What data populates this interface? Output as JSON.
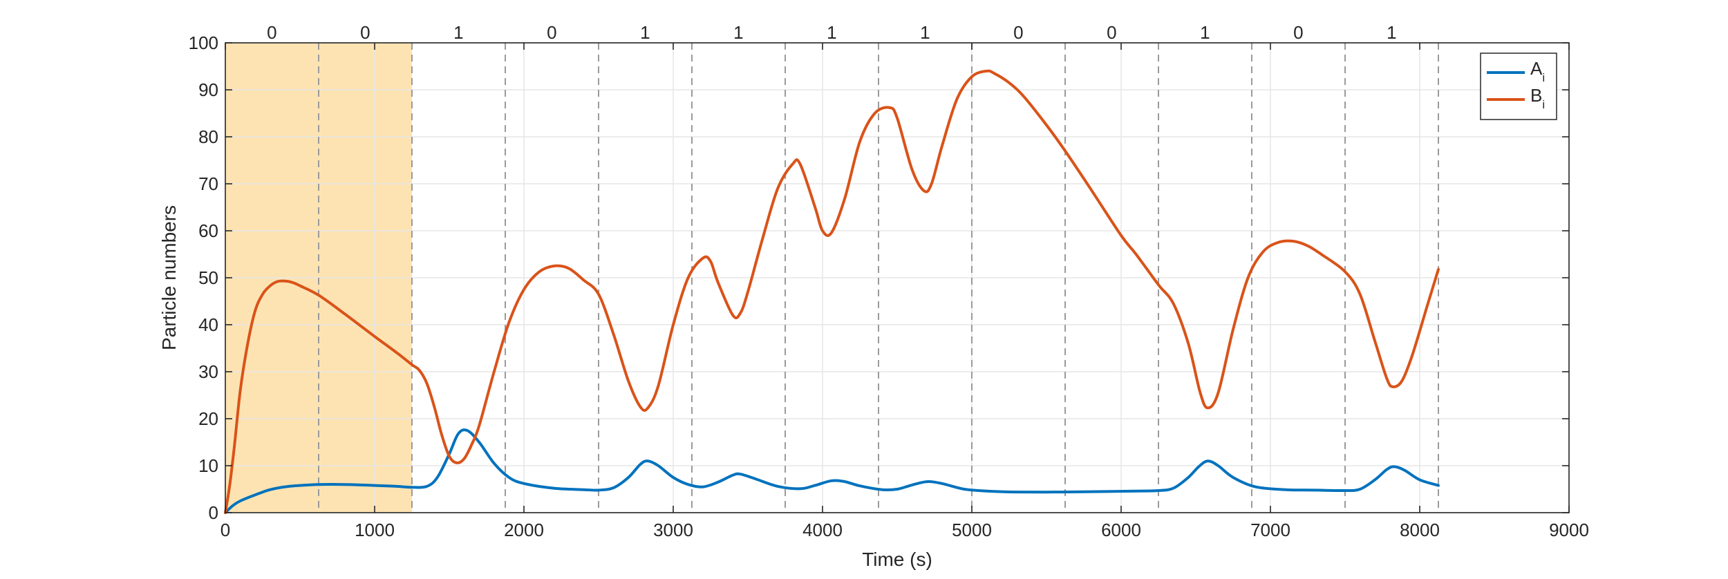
{
  "colors": {
    "series_a": "#0072BD",
    "series_b": "#D95319",
    "highlight": "#FDE3B2",
    "grid": "#E6E6E6",
    "axis": "#262626",
    "boundary": "#9A9A9A"
  },
  "chart_data": {
    "type": "line",
    "xlabel": "Time (s)",
    "ylabel": "Particle numbers",
    "xlim": [
      0,
      9000
    ],
    "ylim": [
      0,
      100
    ],
    "xticks": [
      0,
      1000,
      2000,
      3000,
      4000,
      5000,
      6000,
      7000,
      8000,
      9000
    ],
    "yticks": [
      0,
      10,
      20,
      30,
      40,
      50,
      60,
      70,
      80,
      90,
      100
    ],
    "grid": true,
    "legend_position": "top-right",
    "highlight_region": [
      0,
      1250
    ],
    "boundaries": [
      625,
      1250,
      1875,
      2500,
      3125,
      3750,
      4375,
      5000,
      5625,
      6250,
      6875,
      7500,
      8125
    ],
    "bits": [
      {
        "x": 312,
        "label": "0"
      },
      {
        "x": 937,
        "label": "0"
      },
      {
        "x": 1562,
        "label": "1"
      },
      {
        "x": 2187,
        "label": "0"
      },
      {
        "x": 2812,
        "label": "1"
      },
      {
        "x": 3437,
        "label": "1"
      },
      {
        "x": 4062,
        "label": "1"
      },
      {
        "x": 4687,
        "label": "1"
      },
      {
        "x": 5312,
        "label": "0"
      },
      {
        "x": 5937,
        "label": "0"
      },
      {
        "x": 6562,
        "label": "1"
      },
      {
        "x": 7187,
        "label": "0"
      },
      {
        "x": 7812,
        "label": "1"
      }
    ],
    "series": [
      {
        "name": "A",
        "name_sub": "i",
        "color": "#0072BD",
        "x": [
          0,
          50,
          100,
          200,
          300,
          400,
          500,
          625,
          800,
          1000,
          1150,
          1250,
          1350,
          1420,
          1500,
          1560,
          1620,
          1700,
          1800,
          1900,
          2000,
          2200,
          2400,
          2500,
          2600,
          2700,
          2780,
          2830,
          2900,
          3000,
          3100,
          3200,
          3300,
          3400,
          3450,
          3550,
          3700,
          3850,
          3950,
          4060,
          4150,
          4250,
          4400,
          4500,
          4600,
          4700,
          4800,
          4950,
          5100,
          5300,
          5600,
          5900,
          6100,
          6250,
          6350,
          6450,
          6520,
          6580,
          6650,
          6750,
          6900,
          7100,
          7300,
          7500,
          7600,
          7700,
          7780,
          7830,
          7900,
          8000,
          8125
        ],
        "y": [
          0,
          1.5,
          2.5,
          3.8,
          4.9,
          5.5,
          5.8,
          6.0,
          6.0,
          5.8,
          5.6,
          5.4,
          5.6,
          7.5,
          12.5,
          16.8,
          17.5,
          15,
          10.5,
          7.5,
          6.2,
          5.2,
          4.9,
          4.8,
          5.3,
          7.5,
          10.3,
          11,
          10,
          7.5,
          6.0,
          5.5,
          6.5,
          8.0,
          8.2,
          7.2,
          5.6,
          5.1,
          5.8,
          6.8,
          6.6,
          5.7,
          4.9,
          5.0,
          5.9,
          6.6,
          6.2,
          5.0,
          4.6,
          4.4,
          4.4,
          4.5,
          4.6,
          4.7,
          5.2,
          7.5,
          9.8,
          11,
          10,
          7.5,
          5.5,
          4.9,
          4.8,
          4.7,
          5.0,
          7.0,
          9.2,
          9.8,
          9.0,
          7.0,
          5.8
        ]
      },
      {
        "name": "B",
        "name_sub": "i",
        "color": "#D95319",
        "x": [
          0,
          30,
          60,
          100,
          150,
          200,
          250,
          300,
          350,
          400,
          450,
          500,
          625,
          800,
          1000,
          1150,
          1250,
          1300,
          1350,
          1400,
          1450,
          1500,
          1550,
          1600,
          1650,
          1700,
          1800,
          1900,
          2000,
          2100,
          2200,
          2300,
          2400,
          2500,
          2600,
          2700,
          2780,
          2830,
          2900,
          3000,
          3100,
          3200,
          3250,
          3300,
          3400,
          3450,
          3500,
          3600,
          3700,
          3800,
          3850,
          3950,
          4000,
          4060,
          4150,
          4250,
          4350,
          4450,
          4500,
          4600,
          4680,
          4730,
          4800,
          4900,
          5000,
          5100,
          5150,
          5250,
          5350,
          5500,
          5625,
          5800,
          6000,
          6100,
          6250,
          6350,
          6450,
          6530,
          6580,
          6650,
          6750,
          6850,
          6950,
          7050,
          7150,
          7250,
          7350,
          7500,
          7600,
          7700,
          7780,
          7820,
          7880,
          7950,
          8050,
          8125
        ],
        "y": [
          0,
          6,
          14,
          26,
          36,
          43,
          46.5,
          48.3,
          49.2,
          49.3,
          49.0,
          48.3,
          46.3,
          42.3,
          37.5,
          34,
          31.5,
          30.3,
          27.5,
          22.5,
          16.5,
          12,
          10.6,
          11.5,
          14.5,
          18.5,
          30,
          40.5,
          47.5,
          51.2,
          52.5,
          52,
          49.5,
          46.5,
          38,
          28,
          22.5,
          22.3,
          27,
          40,
          50,
          54.2,
          53.5,
          49,
          42,
          42.5,
          47,
          58.5,
          69,
          74.2,
          74.2,
          65,
          60,
          59.6,
          67,
          79,
          85,
          86.2,
          84,
          73,
          68.5,
          70,
          78,
          88,
          92.8,
          94,
          93.5,
          91.5,
          88.5,
          82.5,
          77,
          68.7,
          59,
          55,
          48.5,
          44.5,
          36,
          25.5,
          22.3,
          25.5,
          39,
          50,
          55.5,
          57.5,
          57.8,
          56.8,
          54.8,
          51.3,
          46.5,
          36.5,
          28.5,
          26.8,
          28,
          33.5,
          44,
          51.8
        ]
      }
    ]
  }
}
